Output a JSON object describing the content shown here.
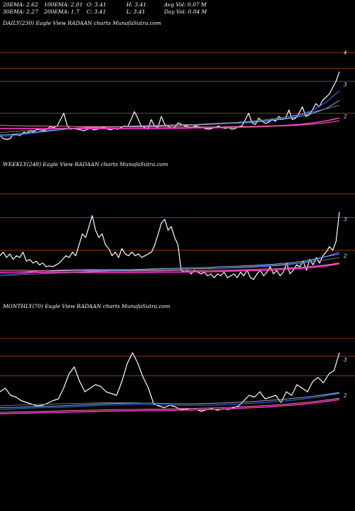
{
  "header": {
    "row1": [
      "20EMA: 2.62",
      "100EMA: 2.01",
      "O: 3.41",
      "H: 3.41",
      "Avg Vol: 0.07  M"
    ],
    "row2": [
      "30EMA: 2.27",
      "200EMA: 1.7",
      "C: 3.41",
      "L: 3.41",
      "Day Vol: 0.04  M"
    ]
  },
  "colors": {
    "background": "#000000",
    "price": "#ffffff",
    "ema_blue": "#3a6dff",
    "ema_sky": "#7fb2ff",
    "ema_magenta": "#ff33cc",
    "ema_pink": "#ff7aa8",
    "ema_grey": "#9a9a9a",
    "level_lines": "#a0521c"
  },
  "chart_data": [
    {
      "type": "line",
      "title": "DAILY(230) Eagle  View  RADAAN  charts MunafaSutra.com",
      "ylim": [
        0.8,
        4.8
      ],
      "y_ticks": [
        {
          "value": 4,
          "label": "4"
        },
        {
          "value": 3,
          "label": "3"
        },
        {
          "value": 2,
          "label": "2"
        }
      ],
      "levels": [
        4,
        3.5,
        3.1,
        2.1
      ],
      "series": [
        {
          "key": "price",
          "values": [
            1.4,
            1.3,
            1.28,
            1.3,
            1.45,
            1.42,
            1.4,
            1.5,
            1.48,
            1.55,
            1.52,
            1.6,
            1.58,
            1.55,
            1.6,
            1.68,
            1.65,
            1.7,
            1.9,
            2.1,
            1.7,
            1.6,
            1.62,
            1.6,
            1.58,
            1.55,
            1.6,
            1.62,
            1.58,
            1.6,
            1.62,
            1.65,
            1.6,
            1.58,
            1.62,
            1.6,
            1.65,
            1.7,
            1.68,
            1.9,
            2.15,
            1.95,
            1.7,
            1.65,
            1.6,
            1.9,
            1.7,
            1.65,
            2.0,
            1.75,
            1.7,
            1.62,
            1.65,
            1.8,
            1.75,
            1.7,
            1.68,
            1.65,
            1.7,
            1.68,
            1.65,
            1.62,
            1.6,
            1.62,
            1.65,
            1.7,
            1.65,
            1.62,
            1.65,
            1.6,
            1.62,
            1.68,
            1.7,
            1.9,
            2.1,
            1.8,
            1.75,
            1.95,
            1.85,
            1.78,
            1.82,
            1.9,
            1.85,
            2.0,
            1.9,
            1.95,
            2.2,
            1.9,
            1.95,
            2.1,
            2.3,
            2.0,
            2.05,
            2.2,
            2.4,
            2.3,
            2.5,
            2.6,
            2.7,
            2.9,
            3.1,
            3.4
          ]
        },
        {
          "key": "ema_blue",
          "values": [
            1.38,
            1.4,
            1.45,
            1.5,
            1.55,
            1.6,
            1.64,
            1.66,
            1.67,
            1.68,
            1.69,
            1.7,
            1.71,
            1.72,
            1.73,
            1.74,
            1.76,
            1.78,
            1.8,
            1.82,
            1.85,
            1.9,
            1.95,
            2.05,
            2.2,
            2.45,
            2.8
          ]
        },
        {
          "key": "ema_sky",
          "values": [
            1.42,
            1.44,
            1.48,
            1.52,
            1.56,
            1.6,
            1.63,
            1.65,
            1.66,
            1.67,
            1.68,
            1.69,
            1.7,
            1.71,
            1.72,
            1.73,
            1.75,
            1.77,
            1.79,
            1.81,
            1.84,
            1.88,
            1.93,
            2.0,
            2.1,
            2.25,
            2.5
          ]
        },
        {
          "key": "ema_magenta",
          "values": [
            1.62,
            1.62,
            1.62,
            1.62,
            1.62,
            1.62,
            1.62,
            1.62,
            1.62,
            1.62,
            1.62,
            1.62,
            1.62,
            1.63,
            1.63,
            1.64,
            1.64,
            1.65,
            1.66,
            1.67,
            1.68,
            1.7,
            1.72,
            1.75,
            1.8,
            1.86,
            1.95
          ]
        },
        {
          "key": "ema_pink",
          "values": [
            1.72,
            1.71,
            1.7,
            1.7,
            1.69,
            1.69,
            1.68,
            1.68,
            1.68,
            1.68,
            1.67,
            1.67,
            1.67,
            1.67,
            1.67,
            1.67,
            1.67,
            1.67,
            1.68,
            1.68,
            1.69,
            1.7,
            1.71,
            1.73,
            1.76,
            1.8,
            1.86
          ]
        },
        {
          "key": "ema_grey",
          "values": [
            1.5,
            1.52,
            1.55,
            1.58,
            1.6,
            1.62,
            1.64,
            1.66,
            1.67,
            1.68,
            1.7,
            1.71,
            1.72,
            1.73,
            1.74,
            1.75,
            1.77,
            1.79,
            1.81,
            1.84,
            1.88,
            1.93,
            1.99,
            2.06,
            2.14,
            2.24,
            2.35
          ]
        }
      ]
    },
    {
      "type": "line",
      "title": "WEEKLY(248) Eagle  View  RADAAN  charts MunafaSutra.com",
      "ylim": [
        0.8,
        4.4
      ],
      "y_ticks": [
        {
          "value": 3,
          "label": "3"
        },
        {
          "value": 2,
          "label": "2"
        }
      ],
      "levels": [
        3.7,
        3.05,
        2.15
      ],
      "series": [
        {
          "key": "price",
          "values": [
            2.0,
            2.1,
            1.95,
            2.05,
            1.9,
            2.0,
            1.95,
            2.1,
            1.85,
            1.9,
            1.8,
            1.85,
            1.75,
            1.8,
            1.7,
            1.72,
            1.7,
            1.75,
            1.8,
            1.9,
            2.0,
            1.95,
            2.1,
            2.0,
            2.3,
            2.6,
            2.5,
            2.8,
            3.1,
            2.7,
            2.5,
            2.6,
            2.3,
            2.2,
            2.0,
            2.1,
            1.95,
            2.2,
            2.05,
            2.0,
            2.1,
            2.0,
            2.05,
            1.95,
            2.0,
            2.05,
            2.1,
            2.3,
            2.6,
            2.9,
            3.0,
            2.7,
            2.8,
            2.5,
            2.3,
            1.6,
            1.55,
            1.6,
            1.5,
            1.6,
            1.55,
            1.5,
            1.55,
            1.45,
            1.5,
            1.4,
            1.5,
            1.45,
            1.55,
            1.4,
            1.45,
            1.5,
            1.4,
            1.55,
            1.45,
            1.6,
            1.4,
            1.35,
            1.5,
            1.6,
            1.45,
            1.55,
            1.7,
            1.5,
            1.6,
            1.45,
            1.55,
            1.8,
            1.5,
            1.6,
            1.75,
            1.7,
            1.85,
            1.6,
            1.9,
            1.75,
            1.95,
            1.8,
            2.0,
            2.1,
            2.25,
            2.15,
            2.4,
            3.2
          ]
        },
        {
          "key": "ema_blue",
          "values": [
            1.5,
            1.5,
            1.52,
            1.55,
            1.57,
            1.58,
            1.59,
            1.6,
            1.6,
            1.6,
            1.6,
            1.61,
            1.62,
            1.62,
            1.63,
            1.64,
            1.65,
            1.66,
            1.67,
            1.68,
            1.7,
            1.72,
            1.75,
            1.8,
            1.88,
            1.98,
            2.1
          ]
        },
        {
          "key": "ema_sky",
          "values": [
            1.54,
            1.55,
            1.56,
            1.58,
            1.6,
            1.61,
            1.62,
            1.62,
            1.62,
            1.62,
            1.62,
            1.63,
            1.64,
            1.65,
            1.66,
            1.67,
            1.68,
            1.7,
            1.71,
            1.73,
            1.75,
            1.77,
            1.8,
            1.84,
            1.9,
            1.98,
            2.05
          ]
        },
        {
          "key": "ema_magenta",
          "values": [
            1.55,
            1.55,
            1.55,
            1.54,
            1.54,
            1.54,
            1.54,
            1.54,
            1.54,
            1.54,
            1.54,
            1.54,
            1.55,
            1.55,
            1.55,
            1.56,
            1.56,
            1.57,
            1.58,
            1.59,
            1.6,
            1.61,
            1.63,
            1.65,
            1.68,
            1.72,
            1.78
          ]
        },
        {
          "key": "ema_pink",
          "values": [
            1.6,
            1.6,
            1.6,
            1.59,
            1.59,
            1.59,
            1.58,
            1.58,
            1.58,
            1.58,
            1.58,
            1.58,
            1.58,
            1.59,
            1.59,
            1.59,
            1.6,
            1.6,
            1.61,
            1.62,
            1.63,
            1.64,
            1.66,
            1.68,
            1.71,
            1.75,
            1.8
          ]
        },
        {
          "key": "ema_grey",
          "values": [
            1.45,
            1.47,
            1.49,
            1.5,
            1.52,
            1.53,
            1.55,
            1.56,
            1.57,
            1.58,
            1.59,
            1.6,
            1.61,
            1.62,
            1.63,
            1.64,
            1.65,
            1.66,
            1.68,
            1.7,
            1.72,
            1.74,
            1.77,
            1.8,
            1.84,
            1.89,
            1.95
          ]
        }
      ]
    },
    {
      "type": "line",
      "title": "MONTHLY(70) Eagle  View  RADAAN  charts MunafaSutra.com",
      "ylim": [
        0.8,
        4.4
      ],
      "y_ticks": [
        {
          "value": 3,
          "label": "3"
        },
        {
          "value": 2,
          "label": "2"
        }
      ],
      "levels": [
        3.6,
        3.1,
        2.55
      ],
      "series": [
        {
          "key": "price",
          "values": [
            2.1,
            2.2,
            2.0,
            1.95,
            1.85,
            1.8,
            1.75,
            1.7,
            1.72,
            1.78,
            1.85,
            1.9,
            2.2,
            2.6,
            2.8,
            2.4,
            2.1,
            2.2,
            2.3,
            2.25,
            2.1,
            2.05,
            2.0,
            2.4,
            2.9,
            3.2,
            2.9,
            2.5,
            2.2,
            1.75,
            1.7,
            1.65,
            1.72,
            1.68,
            1.6,
            1.62,
            1.58,
            1.6,
            1.55,
            1.6,
            1.62,
            1.58,
            1.62,
            1.6,
            1.65,
            1.7,
            1.85,
            2.0,
            1.95,
            2.1,
            1.9,
            1.95,
            2.0,
            1.8,
            2.1,
            2.0,
            2.3,
            2.2,
            2.1,
            2.4,
            2.5,
            2.35,
            2.6,
            2.7,
            3.2
          ]
        },
        {
          "key": "ema_blue",
          "values": [
            1.6,
            1.62,
            1.64,
            1.65,
            1.66,
            1.68,
            1.7,
            1.72,
            1.73,
            1.74,
            1.74,
            1.73,
            1.72,
            1.72,
            1.72,
            1.73,
            1.75,
            1.77,
            1.8,
            1.83,
            1.87,
            1.92,
            1.98,
            2.05
          ]
        },
        {
          "key": "ema_sky",
          "values": [
            1.65,
            1.66,
            1.68,
            1.69,
            1.7,
            1.72,
            1.74,
            1.76,
            1.77,
            1.78,
            1.78,
            1.77,
            1.76,
            1.76,
            1.77,
            1.78,
            1.8,
            1.82,
            1.85,
            1.88,
            1.92,
            1.96,
            2.02,
            2.08
          ]
        },
        {
          "key": "ema_magenta",
          "values": [
            1.48,
            1.49,
            1.5,
            1.51,
            1.52,
            1.53,
            1.54,
            1.55,
            1.56,
            1.56,
            1.57,
            1.57,
            1.58,
            1.59,
            1.6,
            1.61,
            1.63,
            1.65,
            1.67,
            1.7,
            1.73,
            1.77,
            1.82,
            1.88
          ]
        },
        {
          "key": "ema_pink",
          "values": [
            1.52,
            1.53,
            1.54,
            1.55,
            1.56,
            1.57,
            1.58,
            1.59,
            1.6,
            1.6,
            1.61,
            1.61,
            1.62,
            1.63,
            1.64,
            1.65,
            1.67,
            1.69,
            1.71,
            1.74,
            1.77,
            1.81,
            1.86,
            1.92
          ]
        },
        {
          "key": "ema_grey",
          "values": [
            1.7,
            1.72,
            1.74,
            1.75,
            1.76,
            1.77,
            1.78,
            1.79,
            1.79,
            1.79,
            1.78,
            1.77,
            1.76,
            1.76,
            1.77,
            1.78,
            1.8,
            1.82,
            1.85,
            1.88,
            1.92,
            1.96,
            2.01,
            2.07
          ]
        }
      ]
    }
  ]
}
